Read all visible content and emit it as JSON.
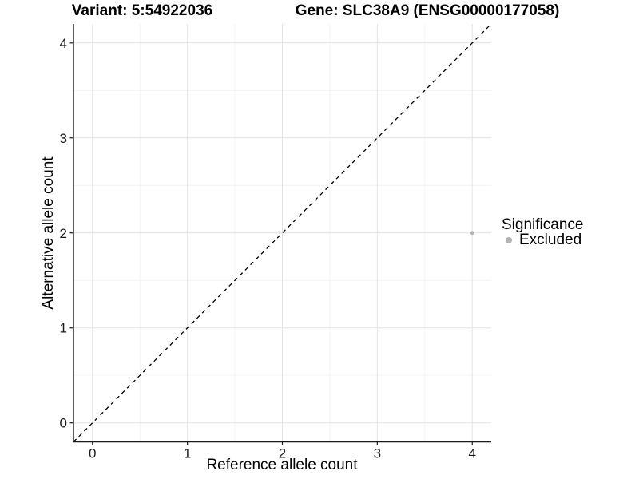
{
  "titles": {
    "variant": "Variant: 5:54922036",
    "gene": "Gene: SLC38A9 (ENSG00000177058)"
  },
  "colors": {
    "background": "#ffffff",
    "point": "#b3b3b3",
    "grid_major": "#e4e4e4",
    "grid_minor": "#f2f2f2",
    "axis": "#1a1a1a",
    "reference_line": "#000000",
    "title_text": "#000000",
    "tick_text": "#1a1a1a"
  },
  "chart_data": {
    "type": "scatter",
    "title_left": "Variant: 5:54922036",
    "title_right": "Gene: SLC38A9 (ENSG00000177058)",
    "xlabel": "Reference allele count",
    "ylabel": "Alternative allele count",
    "xlim": [
      -0.2,
      4.2
    ],
    "ylim": [
      -0.2,
      4.2
    ],
    "xticks": [
      0,
      1,
      2,
      3,
      4
    ],
    "yticks": [
      0,
      1,
      2,
      3,
      4
    ],
    "minor_ticks": [
      0.5,
      1.5,
      2.5,
      3.5
    ],
    "grid": "major+minor",
    "reference_line": {
      "type": "identity-diagonal",
      "slope": 1,
      "intercept": 0,
      "style": "dashed",
      "color": "#000000"
    },
    "series": [
      {
        "name": "Excluded",
        "color": "#b3b3b3",
        "points": [
          {
            "x": 4,
            "y": 2,
            "significance": "Excluded"
          }
        ]
      }
    ],
    "legend": {
      "title": "Significance",
      "position": "right",
      "entries": [
        {
          "label": "Excluded",
          "color": "#b3b3b3"
        }
      ]
    }
  }
}
